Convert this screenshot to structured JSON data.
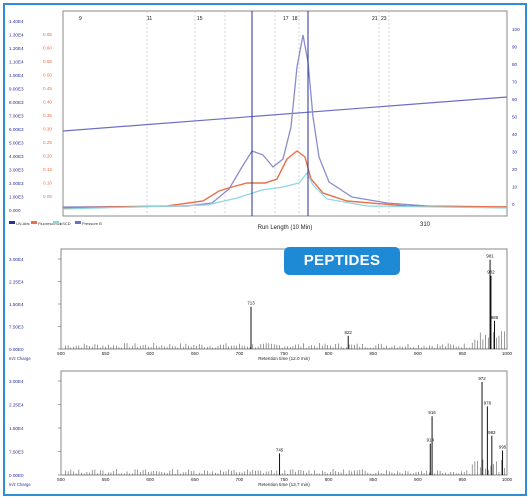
{
  "colors": {
    "frame": "#2f8fd6",
    "badge": "#1e8ad6",
    "uv": "#7b7fcf",
    "fluor": "#e8704a",
    "trace": "#9b9bd0",
    "cyan": "#8fd6e0",
    "ms": "#000000"
  },
  "badge": {
    "label": "PEPTIDES"
  },
  "chromatogram": {
    "top_markers": [
      "9",
      "11",
      "15",
      "17",
      "18",
      "21",
      "23"
    ],
    "xlabel": "Run Length (10 Min)",
    "x_end_label": "310",
    "left_ticks": [
      "1.40E4",
      "1.30E4",
      "1.20E4",
      "1.10E4",
      "1.00E4",
      "9.00E3",
      "8.00E3",
      "7.00E3",
      "6.00E3",
      "5.00E3",
      "4.00E3",
      "3.00E3",
      "2.00E3",
      "1.00E3",
      "0.000"
    ],
    "mid_ticks": [
      "0.65",
      "0.60",
      "0.55",
      "0.50",
      "0.45",
      "0.40",
      "0.35",
      "0.30",
      "0.25",
      "0.20",
      "0.15",
      "0.10",
      "0.05"
    ],
    "right_ticks": [
      "100",
      "90",
      "80",
      "70",
      "60",
      "50",
      "40",
      "30",
      "20",
      "10",
      "0"
    ],
    "legend": [
      "UV-Abs",
      "Fluorescence",
      "LSCD",
      "Pressure B"
    ]
  },
  "spectrum1": {
    "y_ticks": [
      "3.00E4",
      "2.25E4",
      "1.50E4",
      "7.50E3",
      "0.00E0"
    ],
    "x_ticks": [
      "500",
      "550",
      "600",
      "650",
      "700",
      "750",
      "800",
      "850",
      "900",
      "950",
      "1000"
    ],
    "xlabel": "Retention time (12.0 min)",
    "unit": "m/z Charge",
    "peaks": [
      {
        "mz": 713,
        "label": "713"
      },
      {
        "mz": 822,
        "label": "822"
      },
      {
        "mz": 981,
        "label": "981"
      },
      {
        "mz": 982,
        "label": "982"
      },
      {
        "mz": 986,
        "label": "986"
      }
    ]
  },
  "spectrum2": {
    "y_ticks": [
      "3.00E4",
      "2.25E4",
      "1.50E4",
      "7.50E3",
      "0.00E0"
    ],
    "x_ticks": [
      "500",
      "550",
      "600",
      "650",
      "700",
      "750",
      "800",
      "850",
      "900",
      "950",
      "1000"
    ],
    "xlabel": "Retention time (13.7 min)",
    "unit": "m/z Charge",
    "peaks": [
      {
        "mz": 745,
        "label": "745"
      },
      {
        "mz": 914,
        "label": "914"
      },
      {
        "mz": 916,
        "label": "916"
      },
      {
        "mz": 972,
        "label": "972"
      },
      {
        "mz": 978,
        "label": "978"
      },
      {
        "mz": 983,
        "label": "983"
      },
      {
        "mz": 995,
        "label": "995"
      }
    ]
  }
}
